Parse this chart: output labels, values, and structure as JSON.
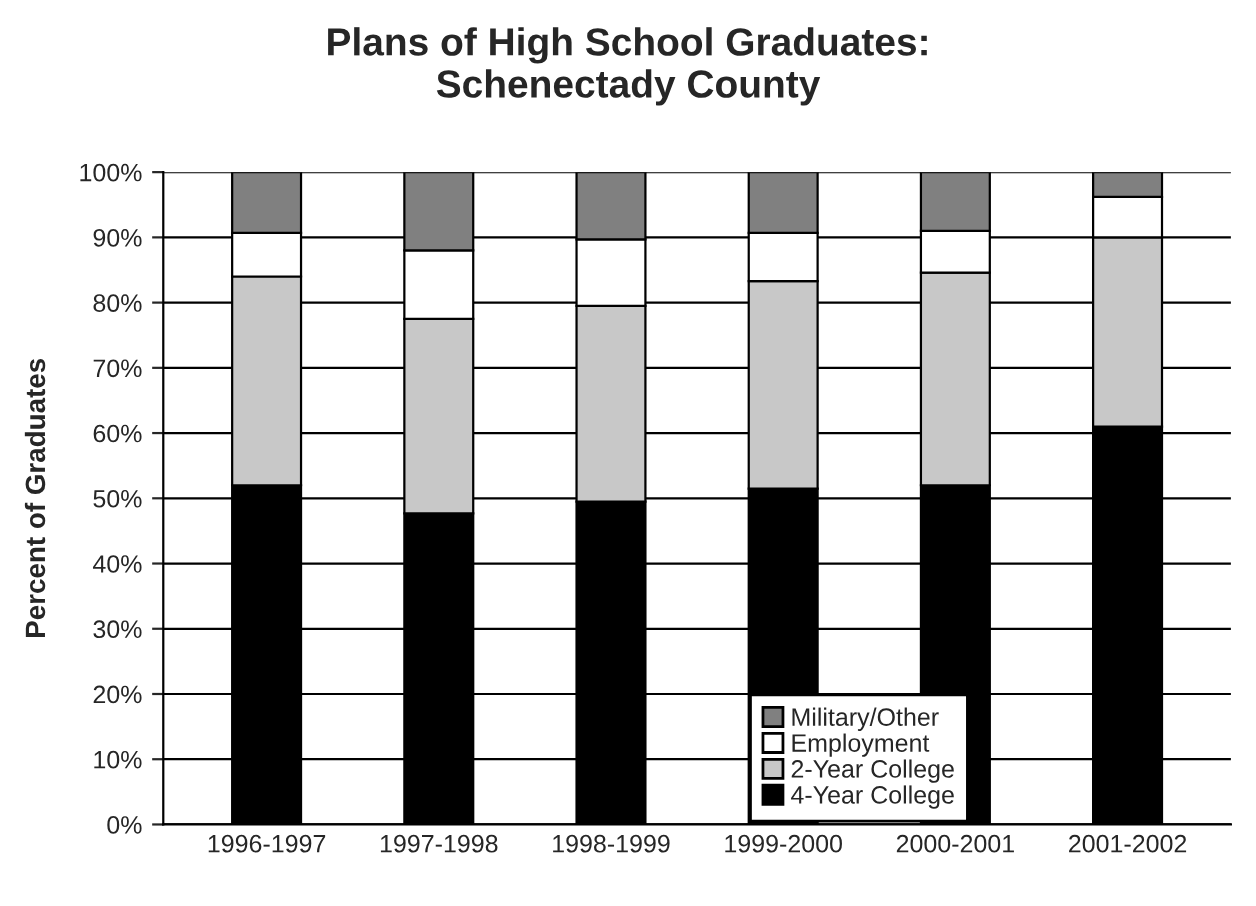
{
  "chart_data": {
    "type": "bar",
    "stacked": true,
    "title": "Plans of High School Graduates:\nSchenectady County",
    "ylabel": "Percent of Graduates",
    "categories": [
      "1996-1997",
      "1997-1998",
      "1998-1999",
      "1999-2000",
      "2000-2001",
      "2001-2002"
    ],
    "series": [
      {
        "name": "4-Year College",
        "color": "#000000",
        "values": [
          52,
          47.7,
          49.5,
          51.5,
          52,
          61
        ]
      },
      {
        "name": "2-Year College",
        "color": "#c8c8c8",
        "values": [
          32,
          29.8,
          30,
          31.8,
          32.6,
          29
        ]
      },
      {
        "name": "Employment",
        "color": "#ffffff",
        "values": [
          6.7,
          10.5,
          10.2,
          7.4,
          6.4,
          6.2
        ]
      },
      {
        "name": "Military/Other",
        "color": "#808080",
        "values": [
          9.3,
          12,
          10.3,
          9.3,
          9,
          3.8
        ]
      }
    ],
    "ylim": [
      0,
      100
    ],
    "yticks": [
      {
        "value": 0,
        "label": "0%"
      },
      {
        "value": 10,
        "label": "10%"
      },
      {
        "value": 20,
        "label": "20%"
      },
      {
        "value": 30,
        "label": "30%"
      },
      {
        "value": 40,
        "label": "40%"
      },
      {
        "value": 50,
        "label": "50%"
      },
      {
        "value": 60,
        "label": "60%"
      },
      {
        "value": 70,
        "label": "70%"
      },
      {
        "value": 80,
        "label": "80%"
      },
      {
        "value": 90,
        "label": "90%"
      },
      {
        "value": 100,
        "label": "100%"
      }
    ],
    "grid": "y",
    "legend": "bottom right"
  }
}
